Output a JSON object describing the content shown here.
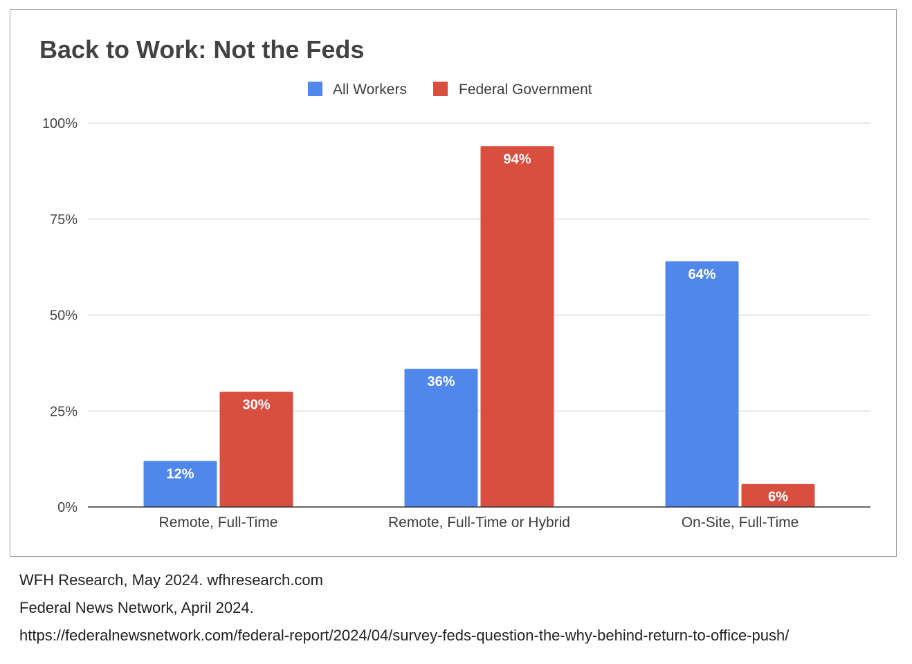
{
  "chart_data": {
    "type": "bar",
    "title": "Back to Work: Not the Feds",
    "categories": [
      "Remote, Full-Time",
      "Remote, Full-Time or Hybrid",
      "On-Site, Full-Time"
    ],
    "series": [
      {
        "name": "All Workers",
        "color": "#5087eb",
        "values": [
          12,
          36,
          64
        ],
        "labels": [
          "12%",
          "36%",
          "64%"
        ]
      },
      {
        "name": "Federal Government",
        "color": "#d84f3f",
        "values": [
          30,
          94,
          6
        ],
        "labels": [
          "30%",
          "94%",
          "6%"
        ]
      }
    ],
    "ylim": [
      0,
      100
    ],
    "yticks": [
      0,
      25,
      50,
      75,
      100
    ],
    "ytick_labels": [
      "0%",
      "25%",
      "50%",
      "75%",
      "100%"
    ],
    "grid": true,
    "legend_position": "top-center",
    "xlabel": "",
    "ylabel": ""
  },
  "sources": [
    "WFH Research, May 2024. wfhresearch.com",
    "Federal News Network, April 2024.",
    "https://federalnewsnetwork.com/federal-report/2024/04/survey-feds-question-the-why-behind-return-to-office-push/"
  ]
}
